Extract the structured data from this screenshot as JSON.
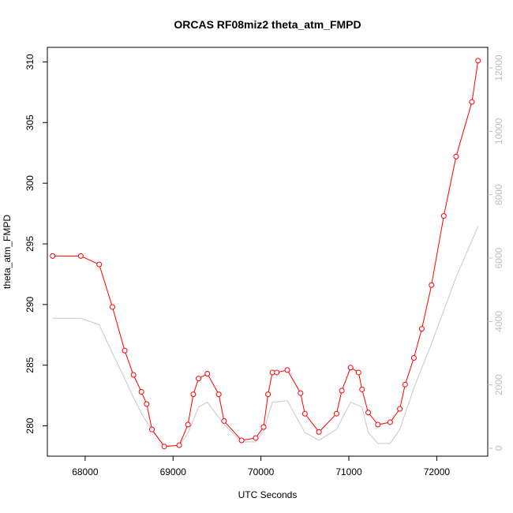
{
  "chart_data": {
    "type": "line",
    "title": "ORCAS RF08miz2 theta_atm_FMPD",
    "xlabel": "UTC Seconds",
    "ylabel": "theta_atm_FMPD",
    "xlim": [
      67570,
      72580
    ],
    "ylim": [
      277.5,
      311.2
    ],
    "y2lim": [
      -250,
      12650
    ],
    "x_ticks": [
      68000,
      69000,
      70000,
      71000,
      72000
    ],
    "y_ticks": [
      280,
      285,
      290,
      295,
      300,
      305,
      310
    ],
    "y2_ticks": [
      0,
      2000,
      4000,
      6000,
      8000,
      10000,
      12000
    ],
    "legend": "none",
    "grid": false,
    "colors": {
      "primary": "#ff0000",
      "secondary": "#c8c8c8",
      "axis": "#000000",
      "axis2": "#bebebe"
    },
    "series": [
      {
        "axis": "left",
        "marker": "circle",
        "x": [
          67630,
          67950,
          68160,
          68310,
          68450,
          68550,
          68640,
          68700,
          68760,
          68900,
          69070,
          69170,
          69230,
          69290,
          69390,
          69520,
          69580,
          69780,
          69940,
          70030,
          70080,
          70130,
          70180,
          70300,
          70450,
          70500,
          70660,
          70860,
          70920,
          71020,
          71110,
          71150,
          71220,
          71330,
          71470,
          71580,
          71640,
          71740,
          71830,
          71940,
          72080,
          72220,
          72400,
          72470
        ],
        "values": [
          294.0,
          294.0,
          293.3,
          289.8,
          286.2,
          284.2,
          282.8,
          281.8,
          279.7,
          278.3,
          278.4,
          280.1,
          282.6,
          283.9,
          284.3,
          282.6,
          280.4,
          278.8,
          279.0,
          279.9,
          282.6,
          284.4,
          284.4,
          284.6,
          282.7,
          281.0,
          279.5,
          281.0,
          282.9,
          284.8,
          284.4,
          283.0,
          281.1,
          280.1,
          280.3,
          281.4,
          283.4,
          285.6,
          288.0,
          291.6,
          297.3,
          302.2,
          306.7,
          310.1
        ]
      },
      {
        "axis": "right",
        "marker": "none",
        "x": [
          67630,
          67950,
          68160,
          68310,
          68450,
          68550,
          68640,
          68760,
          68900,
          69070,
          69170,
          69290,
          69390,
          69580,
          69780,
          69940,
          70030,
          70130,
          70300,
          70500,
          70660,
          70860,
          71020,
          71150,
          71220,
          71330,
          71470,
          71580,
          71740,
          71940,
          72080,
          72220,
          72470
        ],
        "values": [
          4100,
          4100,
          3900,
          3000,
          2200,
          1600,
          1100,
          560,
          80,
          80,
          480,
          1300,
          1450,
          750,
          200,
          200,
          550,
          1450,
          1500,
          500,
          250,
          600,
          1450,
          1300,
          500,
          150,
          150,
          600,
          1900,
          3300,
          4350,
          5400,
          7000
        ]
      }
    ]
  }
}
